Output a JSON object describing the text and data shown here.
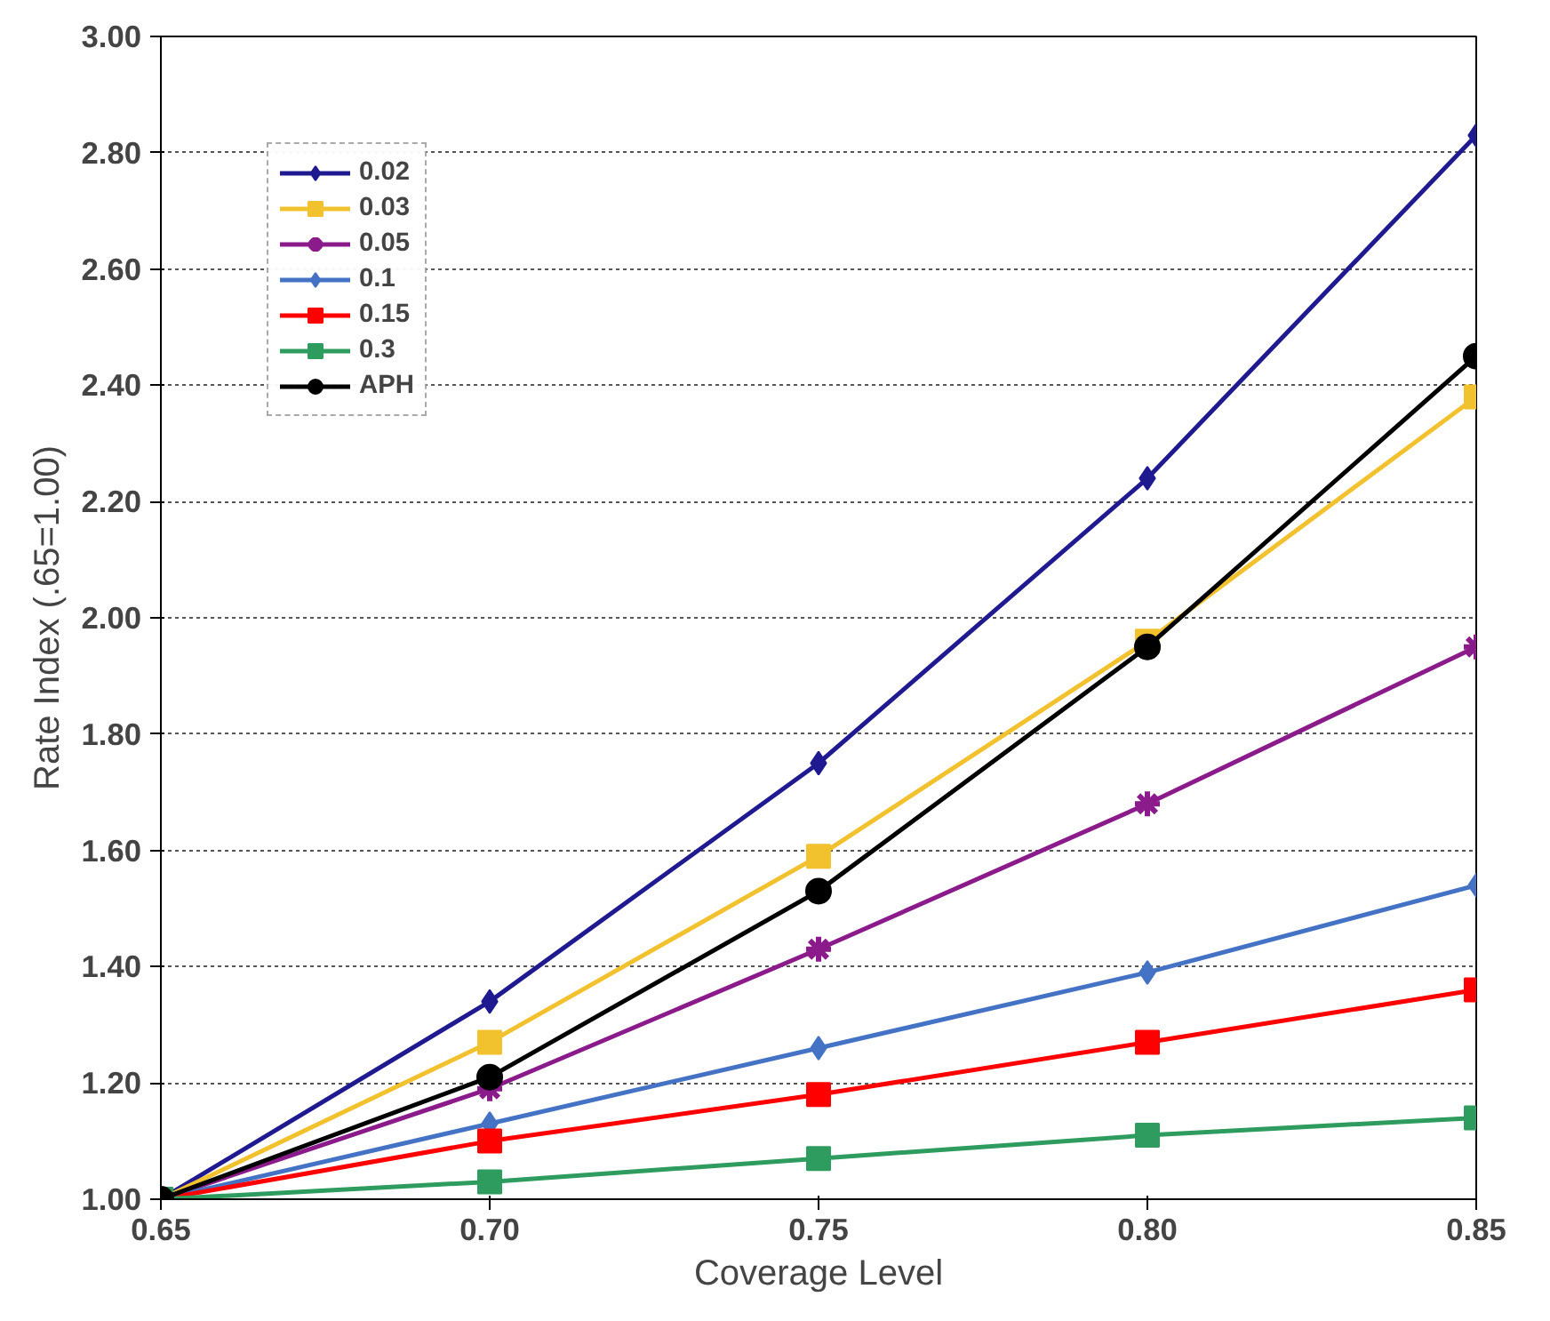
{
  "chart_data": {
    "type": "line",
    "xlabel": "Coverage Level",
    "ylabel": "Rate Index (.65=1.00)",
    "x": [
      0.65,
      0.7,
      0.75,
      0.8,
      0.85
    ],
    "xlim": [
      0.65,
      0.85
    ],
    "xticks": [
      0.65,
      {
        "value": 0.7,
        "label": "0.70"
      },
      0.75,
      {
        "value": 0.8,
        "label": "0.80"
      },
      0.85
    ],
    "ylim": [
      1.0,
      3.0
    ],
    "yticks": [
      {
        "value": 1.0,
        "label": "1.00"
      },
      {
        "value": 1.2,
        "label": "1.20"
      },
      {
        "value": 1.4,
        "label": "1.40"
      },
      {
        "value": 1.6,
        "label": "1.60"
      },
      {
        "value": 1.8,
        "label": "1.80"
      },
      {
        "value": 2.0,
        "label": "2.00"
      },
      {
        "value": 2.2,
        "label": "2.20"
      },
      {
        "value": 2.4,
        "label": "2.40"
      },
      {
        "value": 2.6,
        "label": "2.60"
      },
      {
        "value": 2.8,
        "label": "2.80"
      },
      {
        "value": 3.0,
        "label": "3.00"
      }
    ],
    "grid": "y",
    "legend": "top left",
    "line_style": "solid",
    "series": [
      {
        "name": "0.02",
        "color": "#1f1a8f",
        "marker": "diamond",
        "values": [
          1.0,
          1.34,
          1.75,
          2.24,
          2.83
        ]
      },
      {
        "name": "0.03",
        "color": "#f2c12e",
        "marker": "square",
        "values": [
          1.0,
          1.27,
          1.59,
          1.96,
          2.38
        ]
      },
      {
        "name": "0.05",
        "color": "#8b1a8b",
        "marker": "cross",
        "values": [
          1.0,
          1.19,
          1.43,
          1.68,
          1.95
        ]
      },
      {
        "name": "0.1",
        "color": "#4472c4",
        "marker": "diamond",
        "values": [
          1.0,
          1.13,
          1.26,
          1.39,
          1.54
        ]
      },
      {
        "name": "0.15",
        "color": "#ff0000",
        "marker": "square",
        "values": [
          1.0,
          1.1,
          1.18,
          1.27,
          1.36
        ]
      },
      {
        "name": "0.3",
        "color": "#2e9b5f",
        "marker": "square",
        "values": [
          1.0,
          1.03,
          1.07,
          1.11,
          1.14
        ]
      },
      {
        "name": "APH",
        "color": "#000000",
        "marker": "circle",
        "values": [
          1.0,
          1.21,
          1.53,
          1.95,
          2.45
        ]
      }
    ]
  }
}
